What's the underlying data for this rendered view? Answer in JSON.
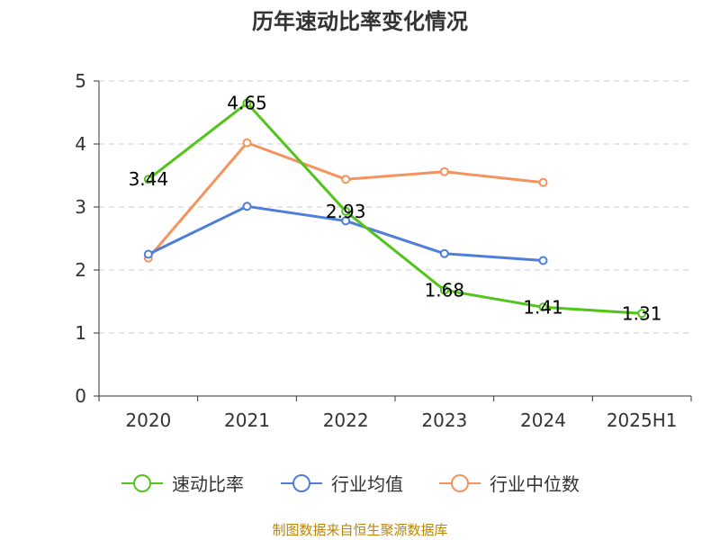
{
  "chart_data": {
    "type": "line",
    "title": "历年速动比率变化情况",
    "categories": [
      "2020",
      "2021",
      "2022",
      "2023",
      "2024",
      "2025H1"
    ],
    "ylim": [
      0,
      5
    ],
    "yticks": [
      0,
      1,
      2,
      3,
      4,
      5
    ],
    "grid": true,
    "legend_position": "bottom",
    "series": [
      {
        "name": "速动比率",
        "color": "#52c41a",
        "values": [
          3.44,
          4.65,
          2.93,
          1.68,
          1.41,
          1.31
        ],
        "data_labels": [
          "3.44",
          "4.65",
          "2.93",
          "1.68",
          "1.41",
          "1.31"
        ]
      },
      {
        "name": "行业均值",
        "color": "#4e7fd8",
        "values": [
          2.25,
          3.01,
          2.78,
          2.26,
          2.15,
          null
        ]
      },
      {
        "name": "行业中位数",
        "color": "#f5925e",
        "values": [
          2.19,
          4.02,
          3.44,
          3.56,
          3.39,
          null
        ]
      }
    ]
  },
  "footer": {
    "source": "制图数据来自恒生聚源数据库"
  }
}
